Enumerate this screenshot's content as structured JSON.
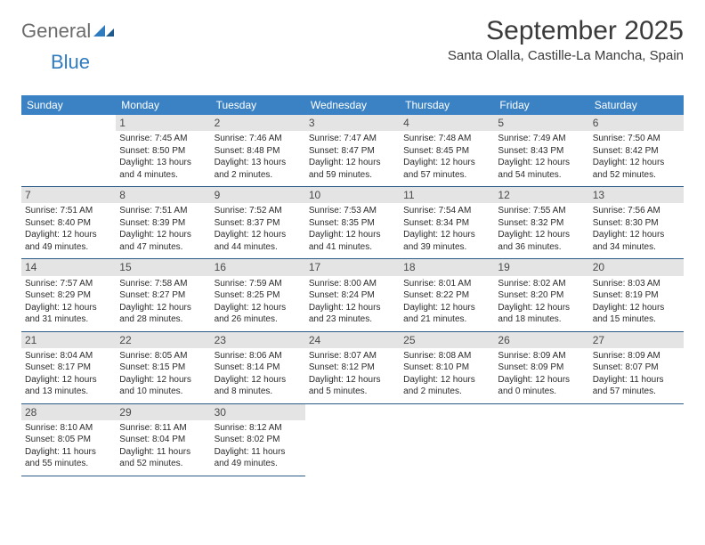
{
  "brand": {
    "general": "General",
    "blue": "Blue"
  },
  "title": "September 2025",
  "location": "Santa Olalla, Castille-La Mancha, Spain",
  "colors": {
    "header_bg": "#3b82c4",
    "header_text": "#ffffff",
    "daynum_bg": "#e4e4e4",
    "rule": "#2b5b86",
    "logo_gray": "#6b6b6b",
    "logo_blue": "#2f7bbf"
  },
  "dow": [
    "Sunday",
    "Monday",
    "Tuesday",
    "Wednesday",
    "Thursday",
    "Friday",
    "Saturday"
  ],
  "weeks": [
    [
      null,
      {
        "n": "1",
        "sr": "Sunrise: 7:45 AM",
        "ss": "Sunset: 8:50 PM",
        "dl": "Daylight: 13 hours and 4 minutes."
      },
      {
        "n": "2",
        "sr": "Sunrise: 7:46 AM",
        "ss": "Sunset: 8:48 PM",
        "dl": "Daylight: 13 hours and 2 minutes."
      },
      {
        "n": "3",
        "sr": "Sunrise: 7:47 AM",
        "ss": "Sunset: 8:47 PM",
        "dl": "Daylight: 12 hours and 59 minutes."
      },
      {
        "n": "4",
        "sr": "Sunrise: 7:48 AM",
        "ss": "Sunset: 8:45 PM",
        "dl": "Daylight: 12 hours and 57 minutes."
      },
      {
        "n": "5",
        "sr": "Sunrise: 7:49 AM",
        "ss": "Sunset: 8:43 PM",
        "dl": "Daylight: 12 hours and 54 minutes."
      },
      {
        "n": "6",
        "sr": "Sunrise: 7:50 AM",
        "ss": "Sunset: 8:42 PM",
        "dl": "Daylight: 12 hours and 52 minutes."
      }
    ],
    [
      {
        "n": "7",
        "sr": "Sunrise: 7:51 AM",
        "ss": "Sunset: 8:40 PM",
        "dl": "Daylight: 12 hours and 49 minutes."
      },
      {
        "n": "8",
        "sr": "Sunrise: 7:51 AM",
        "ss": "Sunset: 8:39 PM",
        "dl": "Daylight: 12 hours and 47 minutes."
      },
      {
        "n": "9",
        "sr": "Sunrise: 7:52 AM",
        "ss": "Sunset: 8:37 PM",
        "dl": "Daylight: 12 hours and 44 minutes."
      },
      {
        "n": "10",
        "sr": "Sunrise: 7:53 AM",
        "ss": "Sunset: 8:35 PM",
        "dl": "Daylight: 12 hours and 41 minutes."
      },
      {
        "n": "11",
        "sr": "Sunrise: 7:54 AM",
        "ss": "Sunset: 8:34 PM",
        "dl": "Daylight: 12 hours and 39 minutes."
      },
      {
        "n": "12",
        "sr": "Sunrise: 7:55 AM",
        "ss": "Sunset: 8:32 PM",
        "dl": "Daylight: 12 hours and 36 minutes."
      },
      {
        "n": "13",
        "sr": "Sunrise: 7:56 AM",
        "ss": "Sunset: 8:30 PM",
        "dl": "Daylight: 12 hours and 34 minutes."
      }
    ],
    [
      {
        "n": "14",
        "sr": "Sunrise: 7:57 AM",
        "ss": "Sunset: 8:29 PM",
        "dl": "Daylight: 12 hours and 31 minutes."
      },
      {
        "n": "15",
        "sr": "Sunrise: 7:58 AM",
        "ss": "Sunset: 8:27 PM",
        "dl": "Daylight: 12 hours and 28 minutes."
      },
      {
        "n": "16",
        "sr": "Sunrise: 7:59 AM",
        "ss": "Sunset: 8:25 PM",
        "dl": "Daylight: 12 hours and 26 minutes."
      },
      {
        "n": "17",
        "sr": "Sunrise: 8:00 AM",
        "ss": "Sunset: 8:24 PM",
        "dl": "Daylight: 12 hours and 23 minutes."
      },
      {
        "n": "18",
        "sr": "Sunrise: 8:01 AM",
        "ss": "Sunset: 8:22 PM",
        "dl": "Daylight: 12 hours and 21 minutes."
      },
      {
        "n": "19",
        "sr": "Sunrise: 8:02 AM",
        "ss": "Sunset: 8:20 PM",
        "dl": "Daylight: 12 hours and 18 minutes."
      },
      {
        "n": "20",
        "sr": "Sunrise: 8:03 AM",
        "ss": "Sunset: 8:19 PM",
        "dl": "Daylight: 12 hours and 15 minutes."
      }
    ],
    [
      {
        "n": "21",
        "sr": "Sunrise: 8:04 AM",
        "ss": "Sunset: 8:17 PM",
        "dl": "Daylight: 12 hours and 13 minutes."
      },
      {
        "n": "22",
        "sr": "Sunrise: 8:05 AM",
        "ss": "Sunset: 8:15 PM",
        "dl": "Daylight: 12 hours and 10 minutes."
      },
      {
        "n": "23",
        "sr": "Sunrise: 8:06 AM",
        "ss": "Sunset: 8:14 PM",
        "dl": "Daylight: 12 hours and 8 minutes."
      },
      {
        "n": "24",
        "sr": "Sunrise: 8:07 AM",
        "ss": "Sunset: 8:12 PM",
        "dl": "Daylight: 12 hours and 5 minutes."
      },
      {
        "n": "25",
        "sr": "Sunrise: 8:08 AM",
        "ss": "Sunset: 8:10 PM",
        "dl": "Daylight: 12 hours and 2 minutes."
      },
      {
        "n": "26",
        "sr": "Sunrise: 8:09 AM",
        "ss": "Sunset: 8:09 PM",
        "dl": "Daylight: 12 hours and 0 minutes."
      },
      {
        "n": "27",
        "sr": "Sunrise: 8:09 AM",
        "ss": "Sunset: 8:07 PM",
        "dl": "Daylight: 11 hours and 57 minutes."
      }
    ],
    [
      {
        "n": "28",
        "sr": "Sunrise: 8:10 AM",
        "ss": "Sunset: 8:05 PM",
        "dl": "Daylight: 11 hours and 55 minutes."
      },
      {
        "n": "29",
        "sr": "Sunrise: 8:11 AM",
        "ss": "Sunset: 8:04 PM",
        "dl": "Daylight: 11 hours and 52 minutes."
      },
      {
        "n": "30",
        "sr": "Sunrise: 8:12 AM",
        "ss": "Sunset: 8:02 PM",
        "dl": "Daylight: 11 hours and 49 minutes."
      },
      null,
      null,
      null,
      null
    ]
  ]
}
